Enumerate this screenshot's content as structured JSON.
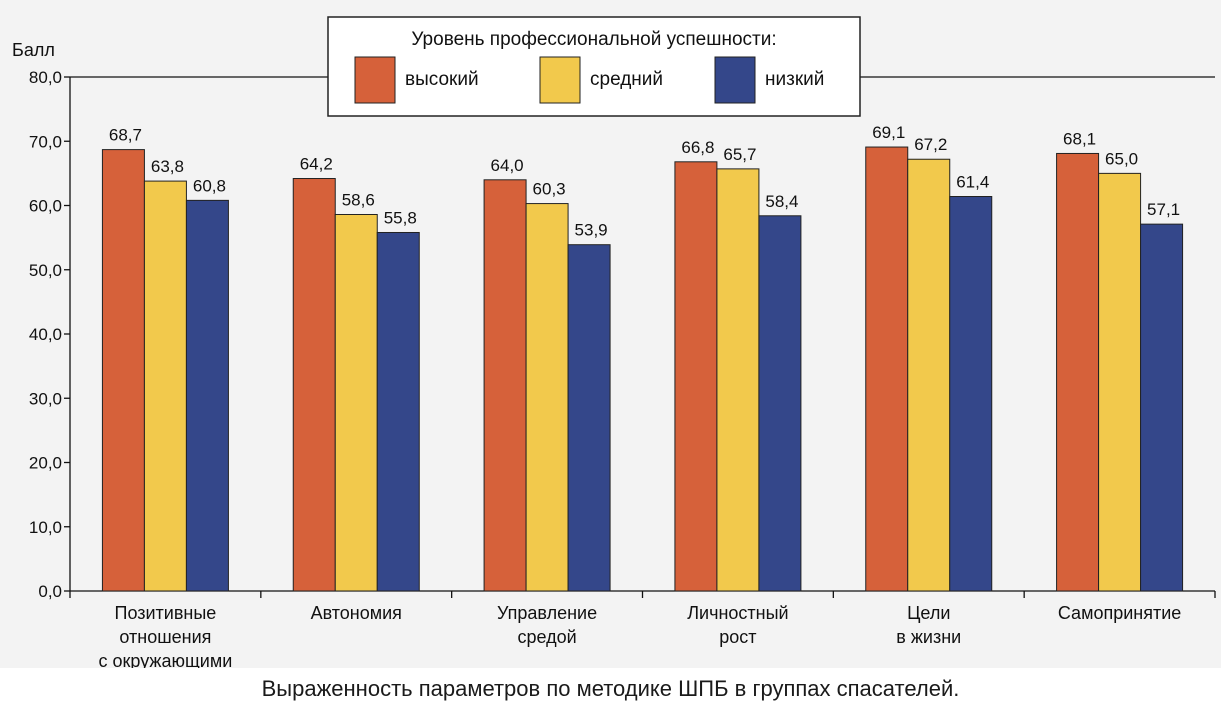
{
  "caption": "Выраженность параметров по методике ШПБ в группах спасателей.",
  "chart_data": {
    "type": "bar",
    "ylabel": "Балл",
    "xlabel": "",
    "ylim": [
      0,
      80
    ],
    "ytick_step": 10,
    "ytick_labels": [
      "0,0",
      "10,0",
      "20,0",
      "30,0",
      "40,0",
      "50,0",
      "60,0",
      "70,0",
      "80,0"
    ],
    "legend_title": "Уровень профессиональной успешности:",
    "legend_position": "top-center",
    "grid": false,
    "categories": [
      [
        "Позитивные",
        "отношения",
        "с окружающими"
      ],
      [
        "Автономия"
      ],
      [
        "Управление",
        "средой"
      ],
      [
        "Личностный",
        "рост"
      ],
      [
        "Цели",
        "в жизни"
      ],
      [
        "Самопринятие"
      ]
    ],
    "series": [
      {
        "name": "высокий",
        "color": "#d6613a",
        "values": [
          68.7,
          64.2,
          64.0,
          66.8,
          69.1,
          68.1
        ],
        "labels": [
          "68,7",
          "64,2",
          "64,0",
          "66,8",
          "69,1",
          "68,1"
        ]
      },
      {
        "name": "средний",
        "color": "#f2c94c",
        "values": [
          63.8,
          58.6,
          60.3,
          65.7,
          67.2,
          65.0
        ],
        "labels": [
          "63,8",
          "58,6",
          "60,3",
          "65,7",
          "67,2",
          "65,0"
        ]
      },
      {
        "name": "низкий",
        "color": "#34478a",
        "values": [
          60.8,
          55.8,
          53.9,
          58.4,
          61.4,
          57.1
        ],
        "labels": [
          "60,8",
          "55,8",
          "53,9",
          "58,4",
          "61,4",
          "57,1"
        ]
      }
    ]
  }
}
